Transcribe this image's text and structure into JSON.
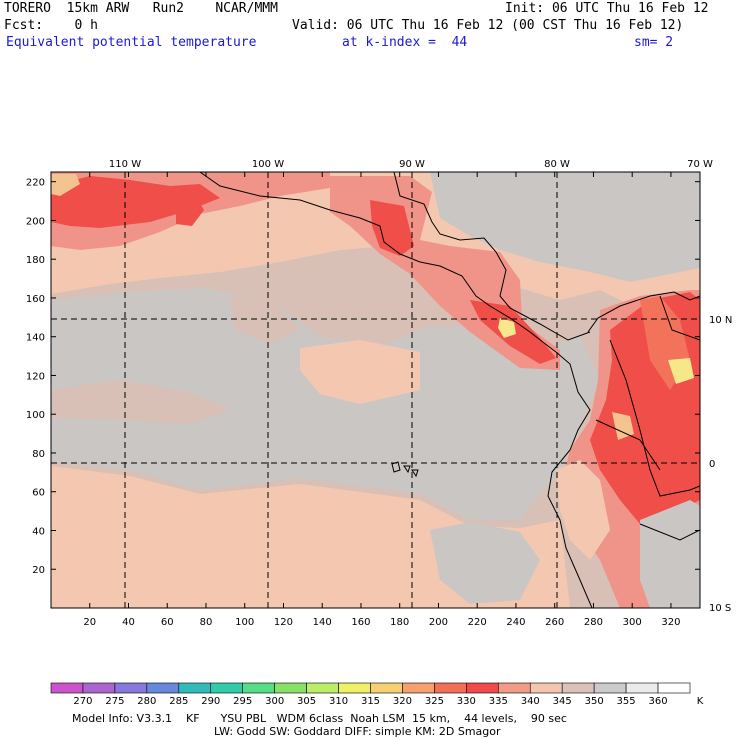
{
  "header": {
    "model": "TORERO  15km ARW   Run2    NCAR/MMM",
    "init": "Init: 06 UTC Thu 16 Feb 12",
    "fcst": "Fcst:    0 h",
    "valid": "Valid: 06 UTC Thu 16 Feb 12 (00 CST Thu 16 Feb 12)",
    "field": "Equivalent potential temperature",
    "level": "at k-index =  44",
    "smooth": "sm= 2"
  },
  "map": {
    "lon_labels": [
      "110 W",
      "100 W",
      "90 W",
      "80 W",
      "70 W"
    ],
    "lat_labels": [
      "10 N",
      "0",
      "10 S"
    ],
    "x_ticks": [
      20,
      40,
      60,
      80,
      100,
      120,
      140,
      160,
      180,
      200,
      220,
      240,
      260,
      280,
      300,
      320
    ],
    "y_ticks": [
      20,
      40,
      60,
      80,
      100,
      120,
      140,
      160,
      180,
      200,
      220
    ],
    "grid_x_range": [
      0,
      335
    ],
    "grid_y_range": [
      0,
      225
    ],
    "colors": {
      "c335": "#f0948a",
      "c340": "#f4c8b0",
      "c345": "#d8c0b6",
      "c350": "#cac6c4",
      "c325": "#f2725a",
      "c330": "#f04e48",
      "c315": "#f6e88a",
      "c320": "#f4c490",
      "land": "#000000",
      "grid": "#000000"
    }
  },
  "colorbar": {
    "labels": [
      "270",
      "275",
      "280",
      "285",
      "290",
      "295",
      "300",
      "305",
      "310",
      "315",
      "320",
      "325",
      "330",
      "335",
      "340",
      "345",
      "350",
      "355",
      "360"
    ],
    "unit": "K",
    "colors": [
      "#cc55cc",
      "#aa66cc",
      "#8877dd",
      "#6688dd",
      "#33bbbb",
      "#33ccaa",
      "#55dd88",
      "#88e066",
      "#bbee66",
      "#eef066",
      "#f6d070",
      "#f6a070",
      "#f27058",
      "#f04a4a",
      "#f29a88",
      "#f4c6b0",
      "#dac2b8",
      "#cccaca",
      "#ebebeb",
      "#ffffff"
    ]
  },
  "footer": {
    "line1": "Model Info: V3.3.1    KF      YSU PBL   WDM 6class  Noah LSM  15 km,    44 levels,    90 sec",
    "line2": "LW: Godd SW: Goddard DIFF: simple KM: 2D Smagor"
  }
}
